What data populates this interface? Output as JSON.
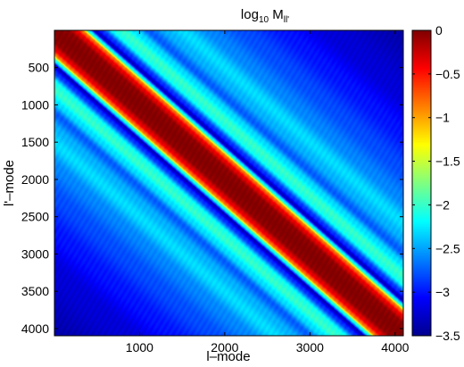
{
  "chart_data": {
    "type": "heatmap",
    "title": "log10 M_ll'",
    "title_parts": {
      "base": "log",
      "base_sub": "10",
      "symbol": " M",
      "symbol_sub": "ll'"
    },
    "xlabel": "l–mode",
    "ylabel": "l'–mode",
    "x_range": [
      1,
      4096
    ],
    "y_range": [
      1,
      4096
    ],
    "y_reversed": true,
    "x_ticks": [
      1000,
      2000,
      3000,
      4000
    ],
    "y_ticks": [
      500,
      1000,
      1500,
      2000,
      2500,
      3000,
      3500,
      4000
    ],
    "x_tick_labels": [
      "1000",
      "2000",
      "3000",
      "4000"
    ],
    "y_tick_labels": [
      "500",
      "1000",
      "1500",
      "2000",
      "2500",
      "3000",
      "3500",
      "4000"
    ],
    "colorbar": {
      "range": [
        -3.5,
        0
      ],
      "ticks": [
        0,
        -0.5,
        -1,
        -1.5,
        -2,
        -2.5,
        -3,
        -3.5
      ],
      "tick_labels": [
        "0",
        "−0.5",
        "−1",
        "−1.5",
        "−2",
        "−2.5",
        "−3",
        "−3.5"
      ],
      "colormap": "jet"
    },
    "value_profile": {
      "description_axis": "offset = l' - l (data units)",
      "offsets": [
        0,
        150,
        250,
        320,
        400,
        470,
        550,
        700,
        800,
        950,
        1100,
        1300,
        1500,
        1800,
        2200,
        2700,
        3200,
        4096
      ],
      "values": [
        0,
        -0.05,
        -0.35,
        -0.8,
        -2.2,
        -3.3,
        -2.9,
        -2.1,
        -2.0,
        -2.3,
        -2.75,
        -2.45,
        -2.3,
        -2.6,
        -2.8,
        -3.0,
        -3.2,
        -3.35
      ]
    }
  }
}
